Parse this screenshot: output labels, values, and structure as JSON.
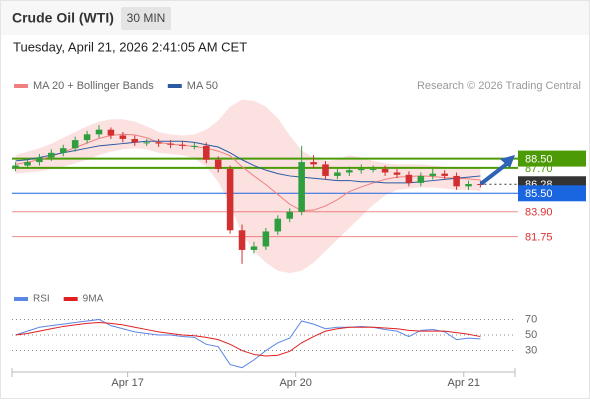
{
  "chart_data": [
    {
      "type": "candlestick",
      "title": "Crude Oil (WTI)",
      "timeframe": "30 MIN",
      "timestamp": "Tuesday, April 21, 2026 2:41:05 AM CET",
      "attribution": "Research © 2026 Trading Central",
      "xlim": [
        -0.3,
        41.9
      ],
      "xticks": [
        {
          "value": 9.4,
          "label": "Apr 17"
        },
        {
          "value": 23.5,
          "label": "Apr 20"
        },
        {
          "value": 37.6,
          "label": "Apr 21"
        }
      ],
      "ylim": [
        78,
        94
      ],
      "up_color": "#2e9e3e",
      "down_color": "#d23030",
      "opens": [
        87.7,
        87.9,
        88.2,
        88.6,
        89.0,
        89.4,
        90.1,
        90.6,
        91.0,
        90.5,
        90.2,
        89.9,
        89.9,
        89.8,
        89.7,
        89.6,
        89.6,
        88.4,
        87.6,
        82.3,
        80.6,
        80.9,
        82.2,
        83.3,
        83.9,
        88.2,
        88.0,
        87.0,
        87.3,
        87.5,
        87.6,
        87.6,
        87.3,
        87.1,
        86.4,
        87.0,
        87.2,
        87.0,
        86.1,
        86.3
      ],
      "highs": [
        88.2,
        88.5,
        88.9,
        89.3,
        89.7,
        90.4,
        90.9,
        91.4,
        91.2,
        90.8,
        90.5,
        90.2,
        90.2,
        90.1,
        90.0,
        89.9,
        89.9,
        88.7,
        87.9,
        82.8,
        81.3,
        82.5,
        83.6,
        84.2,
        89.6,
        88.8,
        88.3,
        87.6,
        87.8,
        88.0,
        87.9,
        87.9,
        87.6,
        87.4,
        87.3,
        87.6,
        87.5,
        87.3,
        86.6,
        86.6
      ],
      "lows": [
        87.4,
        87.6,
        87.9,
        88.3,
        88.7,
        89.1,
        89.8,
        90.3,
        90.2,
        89.9,
        89.6,
        89.6,
        89.5,
        89.4,
        89.3,
        89.3,
        88.1,
        87.3,
        82.0,
        79.4,
        80.3,
        80.6,
        81.9,
        83.0,
        83.6,
        87.7,
        86.7,
        86.7,
        87.0,
        87.2,
        87.3,
        87.0,
        86.8,
        86.1,
        86.1,
        86.7,
        86.7,
        85.8,
        85.8,
        86.0
      ],
      "closes": [
        87.9,
        88.2,
        88.6,
        89.0,
        89.4,
        90.1,
        90.6,
        91.0,
        90.5,
        90.2,
        89.9,
        89.9,
        89.8,
        89.7,
        89.6,
        89.6,
        88.4,
        87.6,
        82.3,
        80.6,
        80.9,
        82.2,
        83.3,
        83.9,
        88.2,
        88.0,
        87.0,
        87.3,
        87.5,
        87.6,
        87.6,
        87.3,
        87.1,
        86.4,
        87.0,
        87.2,
        87.0,
        86.1,
        86.3,
        86.28
      ],
      "overlays": [
        {
          "name": "MA 20 + Bollinger Bands",
          "color": "#f08080",
          "band_color": "#fcdcdc",
          "values": [
            88.0,
            88.2,
            88.4,
            88.7,
            89.05,
            89.45,
            89.85,
            90.25,
            90.5,
            90.6,
            90.55,
            90.3,
            89.9,
            89.75,
            89.65,
            89.55,
            89.4,
            89.15,
            88.75,
            87.8,
            87.0,
            86.25,
            85.4,
            84.55,
            84.0,
            84.05,
            84.4,
            84.95,
            85.65,
            86.05,
            86.4,
            86.7,
            86.9,
            86.95,
            87.0,
            86.95,
            86.85,
            86.8,
            86.75,
            86.65
          ],
          "upper": [
            88.8,
            89.1,
            89.4,
            89.8,
            90.3,
            90.8,
            91.3,
            91.7,
            91.9,
            91.9,
            91.7,
            91.3,
            90.8,
            90.6,
            90.5,
            90.6,
            91.0,
            91.8,
            93.0,
            93.6,
            93.5,
            93.0,
            92.0,
            90.5,
            89.2,
            88.6,
            88.3,
            88.4,
            88.8,
            88.6,
            88.3,
            88.1,
            88.0,
            88.0,
            88.0,
            87.9,
            87.8,
            87.8,
            87.7,
            87.6
          ],
          "lower": [
            87.2,
            87.3,
            87.4,
            87.6,
            87.8,
            88.1,
            88.4,
            88.8,
            89.1,
            89.3,
            89.4,
            89.3,
            89.0,
            88.9,
            88.8,
            88.5,
            87.8,
            86.5,
            84.5,
            82.0,
            80.5,
            79.5,
            78.8,
            78.6,
            78.8,
            79.5,
            80.5,
            81.5,
            82.5,
            83.5,
            84.5,
            85.3,
            85.8,
            85.9,
            86.0,
            86.0,
            85.9,
            85.8,
            85.8,
            85.7
          ]
        },
        {
          "name": "MA 50",
          "color": "#2a5aa0",
          "values": [
            88.3,
            88.4,
            88.6,
            88.8,
            89.0,
            89.2,
            89.4,
            89.6,
            89.7,
            89.8,
            89.9,
            90.0,
            90.0,
            90.0,
            90.0,
            89.9,
            89.7,
            89.5,
            89.0,
            88.4,
            87.9,
            87.5,
            87.2,
            87.0,
            86.9,
            86.8,
            86.7,
            86.6,
            86.6,
            86.5,
            86.5,
            86.4,
            86.4,
            86.4,
            86.5,
            86.6,
            86.7,
            86.8,
            86.9,
            87.0
          ]
        }
      ],
      "levels": [
        {
          "value": 87.7,
          "label": "87.70",
          "color": "#4c9a06",
          "style": "text"
        },
        {
          "value": 88.5,
          "label": "88.50",
          "color": "#4c9a06",
          "style": "box"
        },
        {
          "value": 86.28,
          "label": "86.28",
          "color": "#333333",
          "style": "last"
        },
        {
          "value": 85.5,
          "label": "85.50",
          "color": "#1a66e0",
          "style": "box"
        },
        {
          "value": 83.9,
          "label": "83.90",
          "color": "#e03030",
          "style": "text"
        },
        {
          "value": 81.75,
          "label": "81.75",
          "color": "#e03030",
          "style": "text"
        }
      ]
    },
    {
      "type": "line",
      "xlim": [
        -0.3,
        41.9
      ],
      "ylim": [
        5,
        95
      ],
      "yticks": [
        30,
        50,
        70
      ],
      "series": [
        {
          "name": "RSI",
          "color": "#5b86e5",
          "values": [
            50,
            55,
            60,
            62,
            64,
            66,
            68,
            70,
            62,
            58,
            54,
            52,
            50,
            50,
            48,
            47,
            38,
            35,
            12,
            8,
            18,
            30,
            40,
            46,
            68,
            64,
            58,
            60,
            60,
            61,
            60,
            57,
            55,
            48,
            56,
            57,
            54,
            44,
            46,
            45
          ]
        },
        {
          "name": "9MA",
          "color": "#e02020",
          "values": [
            50,
            52,
            55,
            58,
            61,
            63,
            65,
            66,
            65,
            63,
            60,
            57,
            54,
            52,
            50,
            49,
            47,
            44,
            38,
            30,
            25,
            23,
            24,
            29,
            40,
            48,
            55,
            58,
            60,
            60,
            60,
            59,
            58,
            56,
            55,
            55,
            55,
            53,
            51,
            48
          ]
        }
      ]
    }
  ]
}
